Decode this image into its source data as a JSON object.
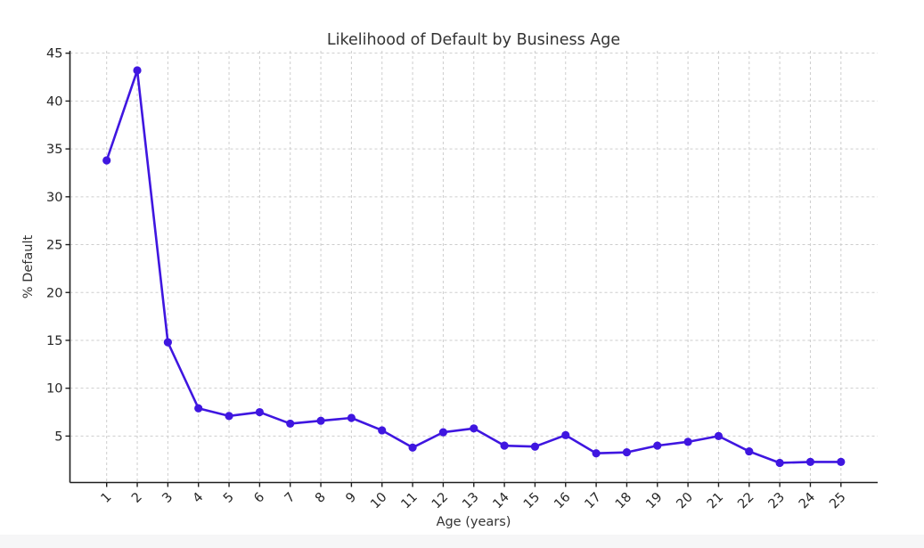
{
  "page": {
    "background": "#ffffff",
    "footer_strip_color": "#f6f6f7"
  },
  "chart_data": {
    "type": "line",
    "title": "Likelihood of Default by Business Age",
    "xlabel": "Age (years)",
    "ylabel": "% Default",
    "x": [
      1,
      2,
      3,
      4,
      5,
      6,
      7,
      8,
      9,
      10,
      11,
      12,
      13,
      14,
      15,
      16,
      17,
      18,
      19,
      20,
      21,
      22,
      23,
      24,
      25
    ],
    "series": [
      {
        "name": "% Default",
        "values": [
          33.8,
          43.2,
          14.8,
          7.9,
          7.1,
          7.5,
          6.3,
          6.6,
          6.9,
          5.6,
          3.8,
          5.4,
          5.8,
          4.0,
          3.9,
          5.1,
          3.2,
          3.3,
          4.0,
          4.4,
          5.0,
          3.4,
          2.2,
          2.3,
          2.3
        ]
      }
    ],
    "x_ticks": [
      1,
      2,
      3,
      4,
      5,
      6,
      7,
      8,
      9,
      10,
      11,
      12,
      13,
      14,
      15,
      16,
      17,
      18,
      19,
      20,
      21,
      22,
      23,
      24,
      25
    ],
    "y_ticks": [
      5,
      10,
      15,
      20,
      25,
      30,
      35,
      40,
      45
    ],
    "xlim": [
      -0.2,
      26.2
    ],
    "ylim": [
      0.15,
      45.25
    ],
    "x_tick_rotation": 45,
    "grid": true,
    "grid_style": "dashed",
    "legend": "none",
    "line_color": "#3F16E0",
    "marker": "circle",
    "grid_color": "#cdcdcd",
    "axis_color": "#1f1f1f",
    "tick_label_color": "#262626",
    "title_color": "#333333"
  }
}
